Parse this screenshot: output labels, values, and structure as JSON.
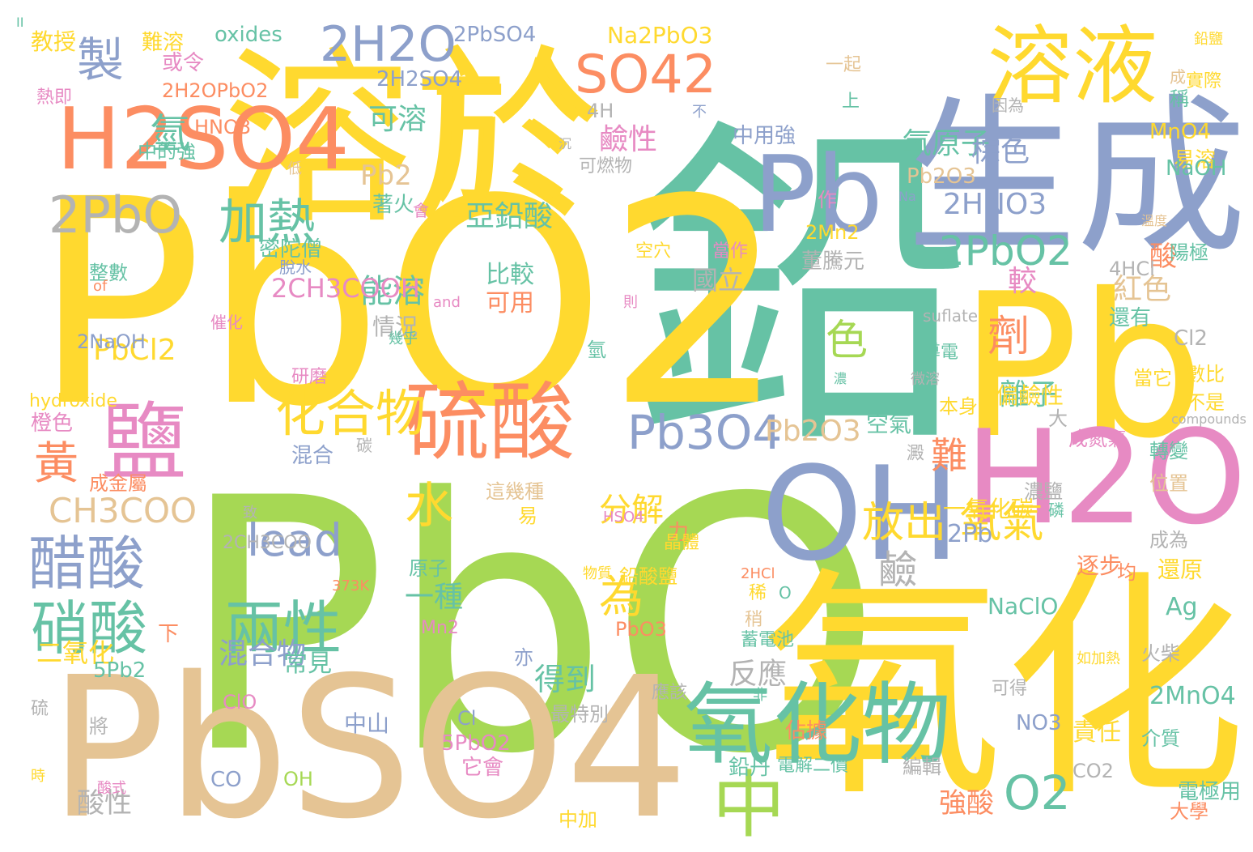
{
  "palette": {
    "teal": "#66c2a5",
    "orange": "#fc8d62",
    "blue": "#8da0cb",
    "pink": "#e78ac3",
    "lime": "#a6d854",
    "yellow": "#ffd92f",
    "tan": "#e5c494",
    "grey": "#b3b3b3"
  },
  "words": [
    {
      "text": "鉛",
      "color": "teal"
    },
    {
      "text": "PbO",
      "color": "lime"
    },
    {
      "text": "PbO2",
      "color": "yellow"
    },
    {
      "text": "PbSO4",
      "color": "tan"
    },
    {
      "text": "氧化",
      "color": "yellow"
    },
    {
      "text": "Pb",
      "color": "yellow"
    },
    {
      "text": "溶於",
      "color": "yellow"
    },
    {
      "text": "於",
      "color": "yellow"
    },
    {
      "text": "生成",
      "color": "blue"
    },
    {
      "text": "Pb",
      "color": "blue"
    },
    {
      "text": "OH",
      "color": "blue"
    },
    {
      "text": "H2O",
      "color": "pink"
    },
    {
      "text": "溶液",
      "color": "yellow"
    },
    {
      "text": "硫酸",
      "color": "orange"
    },
    {
      "text": "鹽",
      "color": "pink"
    },
    {
      "text": "H2SO4",
      "color": "orange"
    },
    {
      "text": "中",
      "color": "lime"
    },
    {
      "text": "氧化物",
      "color": "teal"
    },
    {
      "text": "SO42",
      "color": "orange"
    },
    {
      "text": "2H2O",
      "color": "blue"
    },
    {
      "text": "2PbO",
      "color": "grey"
    },
    {
      "text": "加熱",
      "color": "teal"
    },
    {
      "text": "醋酸",
      "color": "blue"
    },
    {
      "text": "硝酸",
      "color": "teal"
    },
    {
      "text": "兩性",
      "color": "teal"
    },
    {
      "text": "化合物",
      "color": "yellow"
    },
    {
      "text": "Pb3O4",
      "color": "blue"
    },
    {
      "text": "O2",
      "color": "teal"
    },
    {
      "text": "水",
      "color": "yellow"
    },
    {
      "text": "lead",
      "color": "blue"
    },
    {
      "text": "為",
      "color": "yellow"
    },
    {
      "text": "製",
      "color": "blue"
    },
    {
      "text": "氫",
      "color": "teal"
    },
    {
      "text": "黃",
      "color": "orange"
    },
    {
      "text": "難",
      "color": "orange"
    },
    {
      "text": "放出 氧氣",
      "color": "yellow"
    },
    {
      "text": "鹼",
      "color": "grey"
    },
    {
      "text": "2PbO2",
      "color": "teal"
    },
    {
      "text": "CH3COO",
      "color": "tan"
    },
    {
      "text": "亞鉛酸",
      "color": "teal"
    },
    {
      "text": "氧原子",
      "color": "teal"
    },
    {
      "text": "Pb2O3",
      "color": "tan"
    },
    {
      "text": "紅色",
      "color": "tan"
    },
    {
      "text": "鹼性",
      "color": "pink"
    },
    {
      "text": "可溶",
      "color": "teal"
    },
    {
      "text": "Pb2",
      "color": "tan"
    },
    {
      "text": "能溶",
      "color": "teal"
    },
    {
      "text": "較",
      "color": "pink"
    },
    {
      "text": "劑",
      "color": "orange"
    },
    {
      "text": "色",
      "color": "lime"
    },
    {
      "text": "離子",
      "color": "teal"
    },
    {
      "text": "分解",
      "color": "yellow"
    },
    {
      "text": "一種",
      "color": "teal"
    },
    {
      "text": "得到",
      "color": "teal"
    },
    {
      "text": "反應",
      "color": "grey"
    },
    {
      "text": "混合物",
      "color": "blue"
    },
    {
      "text": "PbCl2",
      "color": "yellow"
    },
    {
      "text": "酸性",
      "color": "grey"
    },
    {
      "text": "強酸",
      "color": "orange"
    },
    {
      "text": "酸",
      "color": "orange"
    },
    {
      "text": "棕色",
      "color": "blue"
    },
    {
      "text": "2HNO3",
      "color": "blue"
    },
    {
      "text": "偏鹼性",
      "color": "yellow"
    },
    {
      "text": "比較",
      "color": "teal"
    },
    {
      "text": "可用",
      "color": "orange"
    },
    {
      "text": "二氧化",
      "color": "yellow"
    },
    {
      "text": "常見",
      "color": "teal"
    },
    {
      "text": "空氣",
      "color": "teal"
    },
    {
      "text": "2Pb",
      "color": "blue"
    },
    {
      "text": "一氧化碳",
      "color": "yellow"
    },
    {
      "text": "2MnO4",
      "color": "teal"
    },
    {
      "text": "逐步",
      "color": "orange"
    },
    {
      "text": "還原",
      "color": "yellow"
    },
    {
      "text": "NaClO",
      "color": "teal"
    },
    {
      "text": "Ag",
      "color": "teal"
    },
    {
      "text": "責任",
      "color": "yellow"
    },
    {
      "text": "中山",
      "color": "blue"
    },
    {
      "text": "混合",
      "color": "blue"
    },
    {
      "text": "橙色",
      "color": "pink"
    },
    {
      "text": "5Pb2",
      "color": "teal"
    },
    {
      "text": "中用強",
      "color": "blue"
    },
    {
      "text": "Pb2O3",
      "color": "tan"
    },
    {
      "text": "國立",
      "color": "grey"
    },
    {
      "text": "情況",
      "color": "grey"
    },
    {
      "text": "氫",
      "color": "teal"
    },
    {
      "text": "2CH3COOH",
      "color": "pink"
    },
    {
      "text": "Na2PbO3",
      "color": "yellow"
    },
    {
      "text": "2PbSO4",
      "color": "blue"
    },
    {
      "text": "oxides",
      "color": "teal"
    },
    {
      "text": "難溶",
      "color": "yellow"
    },
    {
      "text": "教授",
      "color": "yellow"
    },
    {
      "text": "或令",
      "color": "pink"
    },
    {
      "text": "2H2OPbO2",
      "color": "orange"
    },
    {
      "text": "熱即",
      "color": "pink"
    },
    {
      "text": "2H2SO4",
      "color": "blue"
    },
    {
      "text": "4H",
      "color": "grey"
    },
    {
      "text": "HNO3",
      "color": "orange"
    },
    {
      "text": "中的強",
      "color": "teal"
    },
    {
      "text": "可燃物",
      "color": "grey"
    },
    {
      "text": "密陀僧",
      "color": "teal"
    },
    {
      "text": "董騰元",
      "color": "grey"
    },
    {
      "text": "2Mn2",
      "color": "yellow"
    },
    {
      "text": "4HCl",
      "color": "grey"
    },
    {
      "text": "還有",
      "color": "teal"
    },
    {
      "text": "Cl2",
      "color": "grey"
    },
    {
      "text": "MnO4",
      "color": "yellow"
    },
    {
      "text": "易溶",
      "color": "yellow"
    },
    {
      "text": "稱",
      "color": "teal"
    },
    {
      "text": "實際",
      "color": "yellow"
    },
    {
      "text": "陽極",
      "color": "teal"
    },
    {
      "text": "數比",
      "color": "yellow"
    },
    {
      "text": "不是",
      "color": "yellow"
    },
    {
      "text": "當它",
      "color": "yellow"
    },
    {
      "text": "成氮氣",
      "color": "pink"
    },
    {
      "text": "轉變",
      "color": "teal"
    },
    {
      "text": "位置",
      "color": "tan"
    },
    {
      "text": "成為",
      "color": "grey"
    },
    {
      "text": "NaOH",
      "color": "teal"
    },
    {
      "text": "2NaOH",
      "color": "blue"
    },
    {
      "text": "hydroxide",
      "color": "yellow"
    },
    {
      "text": "成金屬",
      "color": "orange"
    },
    {
      "text": "這幾種",
      "color": "tan"
    },
    {
      "text": "易",
      "color": "yellow"
    },
    {
      "text": "原子",
      "color": "teal"
    },
    {
      "text": "Mn2",
      "color": "pink"
    },
    {
      "text": "PbO3",
      "color": "orange"
    },
    {
      "text": "鉛酸鹽",
      "color": "yellow"
    },
    {
      "text": "電解二價",
      "color": "teal"
    },
    {
      "text": "蓄電池",
      "color": "teal"
    },
    {
      "text": "鉛丹",
      "color": "teal"
    },
    {
      "text": "佔據",
      "color": "orange"
    },
    {
      "text": "5PbO2",
      "color": "pink"
    },
    {
      "text": "它會",
      "color": "pink"
    },
    {
      "text": "中加",
      "color": "yellow"
    },
    {
      "text": "電極用",
      "color": "teal"
    },
    {
      "text": "大學",
      "color": "orange"
    },
    {
      "text": "CO2",
      "color": "grey"
    },
    {
      "text": "CO",
      "color": "blue"
    },
    {
      "text": "OH",
      "color": "lime"
    },
    {
      "text": "最特別",
      "color": "grey"
    },
    {
      "text": "ClO",
      "color": "pink"
    },
    {
      "text": "NO3",
      "color": "blue"
    },
    {
      "text": "Cl",
      "color": "blue"
    },
    {
      "text": "編輯",
      "color": "grey"
    },
    {
      "text": "介質",
      "color": "teal"
    },
    {
      "text": "火柴",
      "color": "grey"
    },
    {
      "text": "濃鹽",
      "color": "grey"
    },
    {
      "text": "均",
      "color": "orange"
    },
    {
      "text": "下",
      "color": "orange"
    },
    {
      "text": "亦",
      "color": "blue"
    },
    {
      "text": "應該",
      "color": "grey"
    },
    {
      "text": "稍",
      "color": "tan"
    },
    {
      "text": "著火",
      "color": "teal"
    },
    {
      "text": "會",
      "color": "pink"
    },
    {
      "text": "空穴",
      "color": "yellow"
    },
    {
      "text": "當作",
      "color": "pink"
    },
    {
      "text": "作",
      "color": "pink"
    },
    {
      "text": "整數",
      "color": "teal"
    },
    {
      "text": "催化",
      "color": "pink"
    },
    {
      "text": "研磨",
      "color": "pink"
    },
    {
      "text": "導電",
      "color": "teal"
    },
    {
      "text": "本身",
      "color": "yellow"
    },
    {
      "text": "大",
      "color": "grey"
    },
    {
      "text": "力",
      "color": "orange"
    },
    {
      "text": "碳",
      "color": "grey"
    },
    {
      "text": "晶體",
      "color": "yellow"
    },
    {
      "text": "一起",
      "color": "tan"
    },
    {
      "text": "因為",
      "color": "grey"
    },
    {
      "text": "上",
      "color": "teal"
    },
    {
      "text": "成",
      "color": "tan"
    },
    {
      "text": "鉛鹽",
      "color": "yellow"
    },
    {
      "text": "溫度",
      "color": "tan"
    },
    {
      "text": "compounds",
      "color": "grey"
    },
    {
      "text": "suflate",
      "color": "grey"
    },
    {
      "text": "微溶",
      "color": "grey"
    },
    {
      "text": "如加熱",
      "color": "yellow"
    },
    {
      "text": "可得",
      "color": "grey"
    },
    {
      "text": "非",
      "color": "teal"
    },
    {
      "text": "2HCl",
      "color": "orange"
    },
    {
      "text": "373K",
      "color": "orange"
    },
    {
      "text": "酸式",
      "color": "pink"
    },
    {
      "text": "HSO4",
      "color": "pink"
    },
    {
      "text": "2CH3COO",
      "color": "grey"
    },
    {
      "text": "硫",
      "color": "grey"
    },
    {
      "text": "時",
      "color": "yellow"
    },
    {
      "text": "低",
      "color": "tan"
    },
    {
      "text": "不",
      "color": "blue"
    },
    {
      "text": "Na",
      "color": "blue"
    },
    {
      "text": "and",
      "color": "pink"
    },
    {
      "text": "of",
      "color": "orange"
    },
    {
      "text": "幾乎",
      "color": "teal"
    },
    {
      "text": "脫水",
      "color": "blue"
    },
    {
      "text": "沉",
      "color": "grey"
    },
    {
      "text": "濃",
      "color": "teal"
    },
    {
      "text": "物質",
      "color": "yellow"
    },
    {
      "text": "則",
      "color": "pink"
    },
    {
      "text": "致",
      "color": "grey"
    },
    {
      "text": "將",
      "color": "grey"
    },
    {
      "text": "澱",
      "color": "grey"
    },
    {
      "text": "磷",
      "color": "teal"
    },
    {
      "text": "稀",
      "color": "yellow"
    },
    {
      "text": "O",
      "color": "teal"
    },
    {
      "text": "II",
      "color": "teal"
    }
  ]
}
